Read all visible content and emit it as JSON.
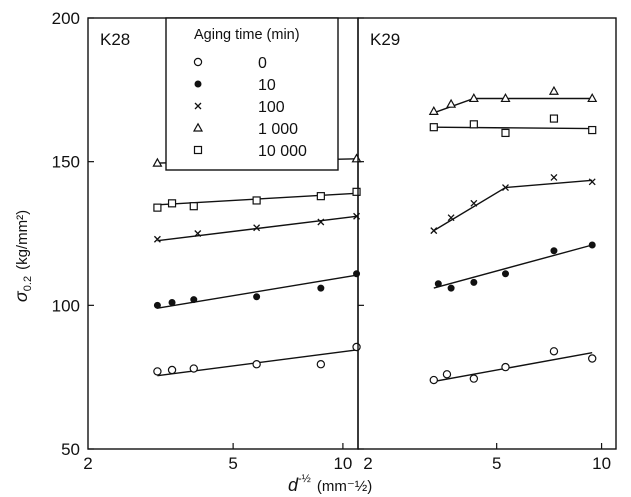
{
  "figure": {
    "ylabel_main": "σ",
    "ylabel_sub": "0.2",
    "ylabel_unit": "(kg/mm²)",
    "xlabel_main": "d",
    "xlabel_sup": "-½",
    "xlabel_unit": "(mm⁻½)",
    "legend_title": "Aging time (min)",
    "yticks": [
      "50",
      "100",
      "150",
      "200"
    ]
  },
  "chart_data": [
    {
      "type": "scatter",
      "panel_label": "K28",
      "xscale": "log",
      "xlim": [
        2,
        11
      ],
      "ylim": [
        50,
        200
      ],
      "xticks": [
        {
          "v": 2,
          "label": "2"
        },
        {
          "v": 5,
          "label": "5"
        },
        {
          "v": 10,
          "label": "10"
        }
      ],
      "series": [
        {
          "name": "0",
          "marker": "circle-open",
          "points": [
            [
              3.1,
              77
            ],
            [
              3.4,
              77.5
            ],
            [
              3.9,
              78
            ],
            [
              5.8,
              79.5
            ],
            [
              8.7,
              79.5
            ],
            [
              10.9,
              85.5
            ]
          ],
          "fit": [
            [
              3.1,
              75.5
            ],
            [
              10.9,
              84.5
            ]
          ]
        },
        {
          "name": "10",
          "marker": "circle-filled",
          "points": [
            [
              3.1,
              100
            ],
            [
              3.4,
              101
            ],
            [
              3.9,
              102
            ],
            [
              5.8,
              103
            ],
            [
              8.7,
              106
            ],
            [
              10.9,
              111
            ]
          ],
          "fit": [
            [
              3.1,
              99
            ],
            [
              10.9,
              110.5
            ]
          ]
        },
        {
          "name": "100",
          "marker": "cross",
          "points": [
            [
              3.1,
              123
            ],
            [
              4.0,
              125
            ],
            [
              5.8,
              127
            ],
            [
              8.7,
              129
            ],
            [
              10.9,
              131
            ]
          ],
          "fit": [
            [
              3.1,
              122.5
            ],
            [
              10.9,
              131
            ]
          ]
        },
        {
          "name": "1 000",
          "marker": "triangle-open",
          "points": [
            [
              3.1,
              149.5
            ],
            [
              3.4,
              150
            ],
            [
              3.9,
              150
            ],
            [
              5.8,
              150
            ],
            [
              8.7,
              151
            ],
            [
              10.9,
              151
            ]
          ],
          "fit": [
            [
              3.1,
              149.5
            ],
            [
              10.9,
              151
            ]
          ]
        },
        {
          "name": "10 000",
          "marker": "square-open",
          "points": [
            [
              3.1,
              134
            ],
            [
              3.4,
              135.5
            ],
            [
              3.9,
              134.5
            ],
            [
              5.8,
              136.5
            ],
            [
              8.7,
              138
            ],
            [
              10.9,
              139.5
            ]
          ],
          "fit": [
            [
              3.1,
              135
            ],
            [
              10.9,
              139
            ]
          ]
        }
      ]
    },
    {
      "type": "scatter",
      "panel_label": "K29",
      "xscale": "log",
      "xlim": [
        2,
        11
      ],
      "ylim": [
        50,
        200
      ],
      "xticks": [
        {
          "v": 2,
          "label": "2"
        },
        {
          "v": 5,
          "label": "5"
        },
        {
          "v": 10,
          "label": "10"
        }
      ],
      "series": [
        {
          "name": "0",
          "marker": "circle-open",
          "points": [
            [
              3.3,
              74
            ],
            [
              3.6,
              76
            ],
            [
              4.3,
              74.5
            ],
            [
              5.3,
              78.5
            ],
            [
              7.3,
              84
            ],
            [
              9.4,
              81.5
            ]
          ],
          "fit": [
            [
              3.3,
              73.5
            ],
            [
              9.4,
              83.5
            ]
          ]
        },
        {
          "name": "10",
          "marker": "circle-filled",
          "points": [
            [
              3.4,
              107.5
            ],
            [
              3.7,
              106
            ],
            [
              4.3,
              108
            ],
            [
              5.3,
              111
            ],
            [
              7.3,
              119
            ],
            [
              9.4,
              121
            ]
          ],
          "fit": [
            [
              3.3,
              106
            ],
            [
              9.4,
              121
            ]
          ]
        },
        {
          "name": "100",
          "marker": "cross",
          "points": [
            [
              3.3,
              126
            ],
            [
              3.7,
              130.5
            ],
            [
              4.3,
              135.5
            ],
            [
              5.3,
              141
            ],
            [
              7.3,
              144.5
            ],
            [
              9.4,
              143
            ]
          ],
          "fit": [
            [
              3.3,
              126
            ],
            [
              5.3,
              141
            ],
            [
              9.4,
              143.5
            ]
          ]
        },
        {
          "name": "1 000",
          "marker": "triangle-open",
          "points": [
            [
              3.3,
              167.5
            ],
            [
              3.7,
              170
            ],
            [
              4.3,
              172
            ],
            [
              5.3,
              172
            ],
            [
              7.3,
              174.5
            ],
            [
              9.4,
              172
            ]
          ],
          "fit": [
            [
              3.3,
              167
            ],
            [
              4.3,
              172
            ],
            [
              9.4,
              172
            ]
          ]
        },
        {
          "name": "10 000",
          "marker": "square-open",
          "points": [
            [
              3.3,
              162
            ],
            [
              4.3,
              163
            ],
            [
              5.3,
              160
            ],
            [
              7.3,
              165
            ],
            [
              9.4,
              161
            ]
          ],
          "fit": [
            [
              3.3,
              162
            ],
            [
              9.4,
              161.5
            ]
          ]
        }
      ]
    }
  ]
}
